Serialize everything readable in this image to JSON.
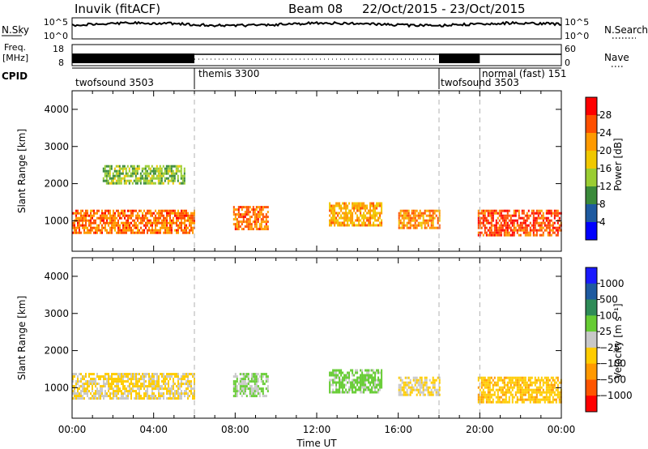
{
  "header": {
    "station": "Inuvik (fitACF)",
    "beam": "Beam 08",
    "date_range": "22/Oct/2015 - 23/Oct/2015"
  },
  "sky_panel": {
    "left_label": "N.Sky",
    "right_label": "N.Search",
    "left_ticks": [
      "10^5",
      "10^0"
    ],
    "right_ticks": [
      "10^5",
      "10^0"
    ]
  },
  "freq_panel": {
    "left_label_1": "Freq.",
    "left_label_2": "[MHz]",
    "right_label": "Nave",
    "left_ticks": [
      "18",
      "8"
    ],
    "right_ticks": [
      "60",
      "0"
    ]
  },
  "cpid_panel": {
    "label": "CPID",
    "modes": [
      {
        "label": "twofsound 3503",
        "start_hour": 0
      },
      {
        "label": "themis 3300",
        "start_hour": 6
      },
      {
        "label": "twofsound 3503",
        "start_hour": 18
      },
      {
        "label": "normal (fast) 151",
        "start_hour": 20
      }
    ]
  },
  "power_panel": {
    "ylabel": "Slant Range [km]",
    "colorbar_label": "Power [dB]",
    "colorbar_ticks": [
      "28",
      "24",
      "20",
      "16",
      "12",
      "8",
      "4"
    ],
    "colorbar_colors": [
      "#ff0000",
      "#ff5000",
      "#ff9a00",
      "#f0c800",
      "#9acd32",
      "#3a8a3a",
      "#1e5aa0",
      "#0000ff"
    ]
  },
  "velocity_panel": {
    "ylabel": "Slant Range [km]",
    "colorbar_label": "Velocity [m s⁻¹]",
    "colorbar_ticks": [
      "1000",
      "500",
      "100",
      "25",
      "−25",
      "−100",
      "−500",
      "−1000"
    ],
    "colorbar_colors": [
      "#1a1aff",
      "#1e5aa0",
      "#2e8b57",
      "#66cc33",
      "#c8c8c8",
      "#ffcc00",
      "#ff9900",
      "#ff5500",
      "#ff0000"
    ]
  },
  "time_axis": {
    "label": "Time UT",
    "ticks": [
      "00:00",
      "04:00",
      "08:00",
      "12:00",
      "16:00",
      "20:00",
      "00:00"
    ]
  },
  "chart_data": [
    {
      "type": "heatmap",
      "title": "Power",
      "xlabel": "Time UT",
      "ylabel": "Slant Range [km]",
      "xlim_hours": [
        0,
        24
      ],
      "ylim": [
        180,
        4500
      ],
      "yticks": [
        1000,
        2000,
        3000,
        4000
      ],
      "color_scale": [
        0,
        30
      ],
      "mode_boundaries_hours": [
        6,
        18,
        20
      ],
      "echo_regions": [
        {
          "t_start": 0.0,
          "t_end": 6.0,
          "range_start": 700,
          "range_end": 1300,
          "value": 24
        },
        {
          "t_start": 1.5,
          "t_end": 5.5,
          "range_start": 2000,
          "range_end": 2500,
          "value": 12
        },
        {
          "t_start": 7.9,
          "t_end": 9.6,
          "range_start": 800,
          "range_end": 1400,
          "value": 24
        },
        {
          "t_start": 12.6,
          "t_end": 15.2,
          "range_start": 900,
          "range_end": 1500,
          "value": 20
        },
        {
          "t_start": 16.0,
          "t_end": 18.0,
          "range_start": 800,
          "range_end": 1300,
          "value": 22
        },
        {
          "t_start": 19.9,
          "t_end": 24.0,
          "range_start": 600,
          "range_end": 1300,
          "value": 26
        }
      ]
    },
    {
      "type": "heatmap",
      "title": "Velocity",
      "xlabel": "Time UT",
      "ylabel": "Slant Range [km]",
      "xlim_hours": [
        0,
        24
      ],
      "ylim": [
        180,
        4500
      ],
      "yticks": [
        1000,
        2000,
        3000,
        4000
      ],
      "color_scale": [
        -1000,
        1000
      ],
      "mode_boundaries_hours": [
        6,
        18,
        20
      ],
      "echo_regions": [
        {
          "t_start": 0.0,
          "t_end": 6.0,
          "range_start": 700,
          "range_end": 1400,
          "value": -150
        },
        {
          "t_start": 7.9,
          "t_end": 9.6,
          "range_start": 800,
          "range_end": 1400,
          "value": 150
        },
        {
          "t_start": 12.6,
          "t_end": 15.2,
          "range_start": 900,
          "range_end": 1500,
          "value": 200
        },
        {
          "t_start": 16.0,
          "t_end": 18.0,
          "range_start": 800,
          "range_end": 1300,
          "value": -150
        },
        {
          "t_start": 19.9,
          "t_end": 24.0,
          "range_start": 600,
          "range_end": 1300,
          "value": -300
        }
      ]
    }
  ]
}
